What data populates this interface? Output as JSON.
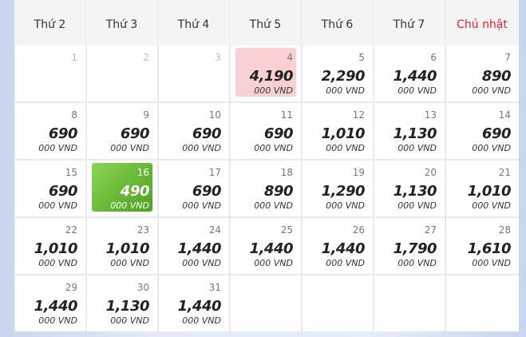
{
  "weekdays": [
    "Thứ 2",
    "Thứ 3",
    "Thứ 4",
    "Thứ 5",
    "Thứ 6",
    "Thứ 7",
    "Chủ nhật"
  ],
  "days": [
    {
      "day": 1
    },
    {
      "day": 2
    },
    {
      "day": 3
    },
    {
      "day": 4,
      "price": "4,190",
      "unit": "000 VND"
    },
    {
      "day": 5,
      "price": "2,290",
      "unit": "000 VND"
    },
    {
      "day": 6,
      "price": "1,440",
      "unit": "000 VND"
    },
    {
      "day": 7,
      "price": "890",
      "unit": "000 VND"
    },
    {
      "day": 8,
      "price": "690",
      "unit": "000 VND"
    },
    {
      "day": 9,
      "price": "690",
      "unit": "000 VND"
    },
    {
      "day": 10,
      "price": "690",
      "unit": "000 VND"
    },
    {
      "day": 11,
      "price": "690",
      "unit": "000 VND"
    },
    {
      "day": 12,
      "price": "1,010",
      "unit": "000 VND"
    },
    {
      "day": 13,
      "price": "1,130",
      "unit": "000 VND"
    },
    {
      "day": 14,
      "price": "690",
      "unit": "000 VND"
    },
    {
      "day": 15,
      "price": "690",
      "unit": "000 VND"
    },
    {
      "day": 16,
      "price": "490",
      "unit": "000 VND"
    },
    {
      "day": 17,
      "price": "690",
      "unit": "000 VND"
    },
    {
      "day": 18,
      "price": "890",
      "unit": "000 VND"
    },
    {
      "day": 19,
      "price": "1,290",
      "unit": "000 VND"
    },
    {
      "day": 20,
      "price": "1,130",
      "unit": "000 VND"
    },
    {
      "day": 21,
      "price": "1,010",
      "unit": "000 VND"
    },
    {
      "day": 22,
      "price": "1,010",
      "unit": "000 VND"
    },
    {
      "day": 23,
      "price": "1,010",
      "unit": "000 VND"
    },
    {
      "day": 24,
      "price": "1,440",
      "unit": "000 VND"
    },
    {
      "day": 25,
      "price": "1,440",
      "unit": "000 VND"
    },
    {
      "day": 26,
      "price": "1,440",
      "unit": "000 VND"
    },
    {
      "day": 27,
      "price": "1,790",
      "unit": "000 VND"
    },
    {
      "day": 28,
      "price": "1,610",
      "unit": "000 VND"
    },
    {
      "day": 29,
      "price": "1,440",
      "unit": "000 VND"
    },
    {
      "day": 30,
      "price": "1,130",
      "unit": "000 VND"
    },
    {
      "day": 31,
      "price": "1,440",
      "unit": "000 VND"
    }
  ]
}
